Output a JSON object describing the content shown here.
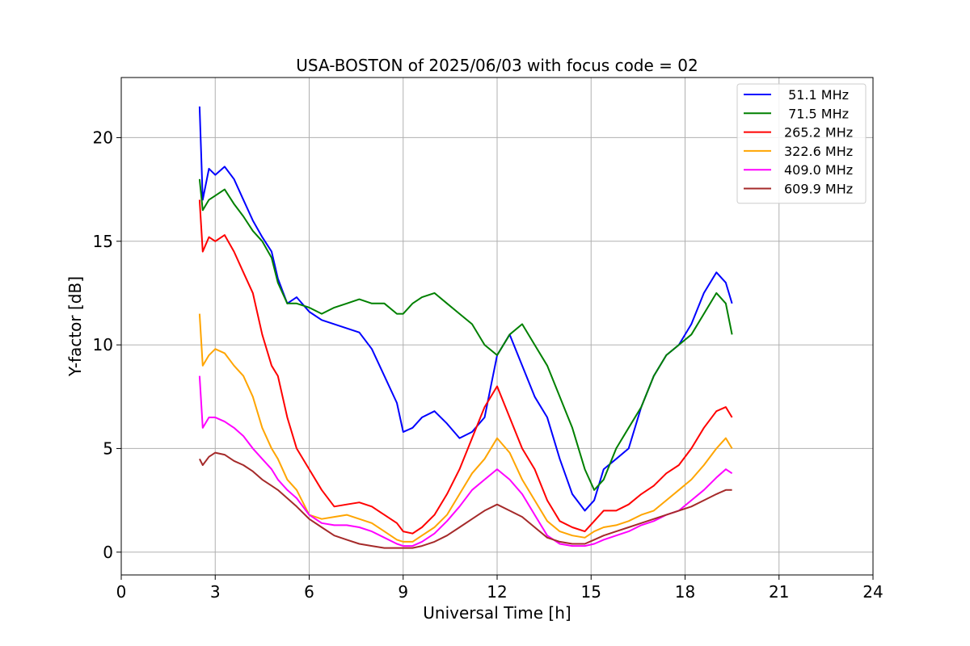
{
  "chart_data": {
    "type": "line",
    "title": "USA-BOSTON of 2025/06/03 with focus code = 02",
    "xlabel": "Universal Time [h]",
    "ylabel": "Y-factor [dB]",
    "xlim": [
      0,
      24
    ],
    "ylim": [
      -1.1,
      22.9
    ],
    "xticks": [
      0,
      3,
      6,
      9,
      12,
      15,
      18,
      21,
      24
    ],
    "yticks": [
      0,
      5,
      10,
      15,
      20
    ],
    "grid": true,
    "legend_position": "top-right",
    "series": [
      {
        "name": " 51.1 MHz",
        "color": "#0000ff",
        "x": [
          2.5,
          2.6,
          2.8,
          3.0,
          3.3,
          3.6,
          3.9,
          4.2,
          4.5,
          4.8,
          5.0,
          5.3,
          5.6,
          6.0,
          6.4,
          6.8,
          7.2,
          7.6,
          8.0,
          8.4,
          8.8,
          9.0,
          9.3,
          9.6,
          10.0,
          10.4,
          10.8,
          11.2,
          11.6,
          12.0,
          12.4,
          12.8,
          13.2,
          13.6,
          14.0,
          14.4,
          14.8,
          15.1,
          15.4,
          15.8,
          16.2,
          16.6,
          17.0,
          17.4,
          17.8,
          18.2,
          18.6,
          19.0,
          19.3,
          19.5
        ],
        "values": [
          21.5,
          17.0,
          18.5,
          18.2,
          18.6,
          18.0,
          17.0,
          16.0,
          15.2,
          14.5,
          13.2,
          12.0,
          12.3,
          11.6,
          11.2,
          11.0,
          10.8,
          10.6,
          9.8,
          8.5,
          7.2,
          5.8,
          6.0,
          6.5,
          6.8,
          6.2,
          5.5,
          5.8,
          6.5,
          9.5,
          10.5,
          9.0,
          7.5,
          6.5,
          4.5,
          2.8,
          2.0,
          2.5,
          4.0,
          4.5,
          5.0,
          7.0,
          8.5,
          9.5,
          10.0,
          11.0,
          12.5,
          13.5,
          13.0,
          12.0
        ]
      },
      {
        "name": " 71.5 MHz",
        "color": "#008000",
        "x": [
          2.5,
          2.6,
          2.8,
          3.0,
          3.3,
          3.6,
          3.9,
          4.2,
          4.5,
          4.8,
          5.0,
          5.3,
          5.6,
          6.0,
          6.4,
          6.8,
          7.2,
          7.6,
          8.0,
          8.4,
          8.8,
          9.0,
          9.3,
          9.6,
          10.0,
          10.4,
          10.8,
          11.2,
          11.6,
          12.0,
          12.4,
          12.8,
          13.2,
          13.6,
          14.0,
          14.4,
          14.8,
          15.1,
          15.4,
          15.8,
          16.2,
          16.6,
          17.0,
          17.4,
          17.8,
          18.2,
          18.6,
          19.0,
          19.3,
          19.5
        ],
        "values": [
          18.0,
          16.5,
          17.0,
          17.2,
          17.5,
          16.8,
          16.2,
          15.5,
          15.0,
          14.2,
          13.0,
          12.0,
          12.0,
          11.8,
          11.5,
          11.8,
          12.0,
          12.2,
          12.0,
          12.0,
          11.5,
          11.5,
          12.0,
          12.3,
          12.5,
          12.0,
          11.5,
          11.0,
          10.0,
          9.5,
          10.5,
          11.0,
          10.0,
          9.0,
          7.5,
          6.0,
          4.0,
          3.0,
          3.5,
          5.0,
          6.0,
          7.0,
          8.5,
          9.5,
          10.0,
          10.5,
          11.5,
          12.5,
          12.0,
          10.5
        ]
      },
      {
        "name": "265.2 MHz",
        "color": "#ff0000",
        "x": [
          2.5,
          2.6,
          2.8,
          3.0,
          3.3,
          3.6,
          3.9,
          4.2,
          4.5,
          4.8,
          5.0,
          5.3,
          5.6,
          6.0,
          6.4,
          6.8,
          7.2,
          7.6,
          8.0,
          8.4,
          8.8,
          9.0,
          9.3,
          9.6,
          10.0,
          10.4,
          10.8,
          11.2,
          11.6,
          12.0,
          12.4,
          12.8,
          13.2,
          13.6,
          14.0,
          14.4,
          14.8,
          15.1,
          15.4,
          15.8,
          16.2,
          16.6,
          17.0,
          17.4,
          17.8,
          18.2,
          18.6,
          19.0,
          19.3,
          19.5
        ],
        "values": [
          17.0,
          14.5,
          15.2,
          15.0,
          15.3,
          14.5,
          13.5,
          12.5,
          10.5,
          9.0,
          8.5,
          6.5,
          5.0,
          4.0,
          3.0,
          2.2,
          2.3,
          2.4,
          2.2,
          1.8,
          1.4,
          1.0,
          0.9,
          1.2,
          1.8,
          2.8,
          4.0,
          5.5,
          7.0,
          8.0,
          6.5,
          5.0,
          4.0,
          2.5,
          1.5,
          1.2,
          1.0,
          1.5,
          2.0,
          2.0,
          2.3,
          2.8,
          3.2,
          3.8,
          4.2,
          5.0,
          6.0,
          6.8,
          7.0,
          6.5
        ]
      },
      {
        "name": "322.6 MHz",
        "color": "#ffa500",
        "x": [
          2.5,
          2.6,
          2.8,
          3.0,
          3.3,
          3.6,
          3.9,
          4.2,
          4.5,
          4.8,
          5.0,
          5.3,
          5.6,
          6.0,
          6.4,
          6.8,
          7.2,
          7.6,
          8.0,
          8.4,
          8.8,
          9.0,
          9.3,
          9.6,
          10.0,
          10.4,
          10.8,
          11.2,
          11.6,
          12.0,
          12.4,
          12.8,
          13.2,
          13.6,
          14.0,
          14.4,
          14.8,
          15.1,
          15.4,
          15.8,
          16.2,
          16.6,
          17.0,
          17.4,
          17.8,
          18.2,
          18.6,
          19.0,
          19.3,
          19.5
        ],
        "values": [
          11.5,
          9.0,
          9.5,
          9.8,
          9.6,
          9.0,
          8.5,
          7.5,
          6.0,
          5.0,
          4.5,
          3.5,
          3.0,
          1.8,
          1.6,
          1.7,
          1.8,
          1.6,
          1.4,
          1.0,
          0.6,
          0.5,
          0.5,
          0.8,
          1.2,
          1.8,
          2.8,
          3.8,
          4.5,
          5.5,
          4.8,
          3.5,
          2.5,
          1.5,
          1.0,
          0.8,
          0.7,
          1.0,
          1.2,
          1.3,
          1.5,
          1.8,
          2.0,
          2.5,
          3.0,
          3.5,
          4.2,
          5.0,
          5.5,
          5.0
        ]
      },
      {
        "name": "409.0 MHz",
        "color": "#ff00ff",
        "x": [
          2.5,
          2.6,
          2.8,
          3.0,
          3.3,
          3.6,
          3.9,
          4.2,
          4.5,
          4.8,
          5.0,
          5.3,
          5.6,
          6.0,
          6.4,
          6.8,
          7.2,
          7.6,
          8.0,
          8.4,
          8.8,
          9.0,
          9.3,
          9.6,
          10.0,
          10.4,
          10.8,
          11.2,
          11.6,
          12.0,
          12.4,
          12.8,
          13.2,
          13.6,
          14.0,
          14.4,
          14.8,
          15.1,
          15.4,
          15.8,
          16.2,
          16.6,
          17.0,
          17.4,
          17.8,
          18.2,
          18.6,
          19.0,
          19.3,
          19.5
        ],
        "values": [
          8.5,
          6.0,
          6.5,
          6.5,
          6.3,
          6.0,
          5.6,
          5.0,
          4.5,
          4.0,
          3.5,
          3.0,
          2.6,
          1.8,
          1.4,
          1.3,
          1.3,
          1.2,
          1.0,
          0.7,
          0.4,
          0.3,
          0.3,
          0.5,
          0.9,
          1.5,
          2.2,
          3.0,
          3.5,
          4.0,
          3.5,
          2.8,
          1.8,
          0.8,
          0.4,
          0.3,
          0.3,
          0.4,
          0.6,
          0.8,
          1.0,
          1.3,
          1.5,
          1.8,
          2.0,
          2.5,
          3.0,
          3.6,
          4.0,
          3.8
        ]
      },
      {
        "name": "609.9 MHz",
        "color": "#a52a2a",
        "x": [
          2.5,
          2.6,
          2.8,
          3.0,
          3.3,
          3.6,
          3.9,
          4.2,
          4.5,
          4.8,
          5.0,
          5.3,
          5.6,
          6.0,
          6.4,
          6.8,
          7.2,
          7.6,
          8.0,
          8.4,
          8.8,
          9.0,
          9.3,
          9.6,
          10.0,
          10.4,
          10.8,
          11.2,
          11.6,
          12.0,
          12.4,
          12.8,
          13.2,
          13.6,
          14.0,
          14.4,
          14.8,
          15.1,
          15.4,
          15.8,
          16.2,
          16.6,
          17.0,
          17.4,
          17.8,
          18.2,
          18.6,
          19.0,
          19.3,
          19.5
        ],
        "values": [
          4.5,
          4.2,
          4.6,
          4.8,
          4.7,
          4.4,
          4.2,
          3.9,
          3.5,
          3.2,
          3.0,
          2.6,
          2.2,
          1.6,
          1.2,
          0.8,
          0.6,
          0.4,
          0.3,
          0.2,
          0.2,
          0.2,
          0.2,
          0.3,
          0.5,
          0.8,
          1.2,
          1.6,
          2.0,
          2.3,
          2.0,
          1.7,
          1.2,
          0.7,
          0.5,
          0.4,
          0.4,
          0.6,
          0.8,
          1.0,
          1.2,
          1.4,
          1.6,
          1.8,
          2.0,
          2.2,
          2.5,
          2.8,
          3.0,
          3.0
        ]
      }
    ]
  }
}
